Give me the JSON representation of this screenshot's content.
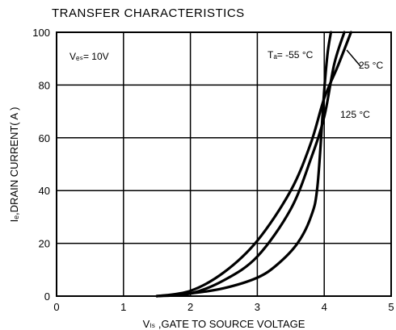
{
  "chart_data": {
    "type": "line",
    "title": "TRANSFER CHARACTERISTICS",
    "xlabel": "Vₗₛ ,GATE TO SOURCE VOLTAGE",
    "ylabel": "Iₑ,DRAIN CURRENT( A )",
    "xlim": [
      0,
      5
    ],
    "ylim": [
      0,
      100
    ],
    "xticks": [
      "0",
      "1",
      "2",
      "3",
      "4",
      "5"
    ],
    "yticks": [
      "0",
      "20",
      "40",
      "60",
      "80",
      "100"
    ],
    "grid": true,
    "annotations": {
      "condition": "Vₑₛ= 10V",
      "t_minus55": "Tₐ= -55 °C",
      "t_25": "25 °C",
      "t_125": "125 °C"
    },
    "series": [
      {
        "name": "-55 °C",
        "x": [
          1.5,
          2.0,
          2.5,
          3.0,
          3.3,
          3.6,
          3.8,
          3.9,
          4.0,
          4.05,
          4.1
        ],
        "y": [
          0,
          1,
          3,
          7,
          12,
          20,
          30,
          42,
          78,
          92,
          100
        ]
      },
      {
        "name": "25 °C",
        "x": [
          1.5,
          2.0,
          2.5,
          3.0,
          3.5,
          3.8,
          4.0,
          4.15,
          4.3
        ],
        "y": [
          0,
          1,
          6,
          15,
          33,
          52,
          68,
          88,
          100
        ]
      },
      {
        "name": "125 °C",
        "x": [
          1.5,
          2.0,
          2.5,
          3.0,
          3.5,
          3.8,
          4.0,
          4.2,
          4.4
        ],
        "y": [
          0,
          2,
          9,
          21,
          40,
          58,
          75,
          87,
          100
        ]
      }
    ]
  }
}
